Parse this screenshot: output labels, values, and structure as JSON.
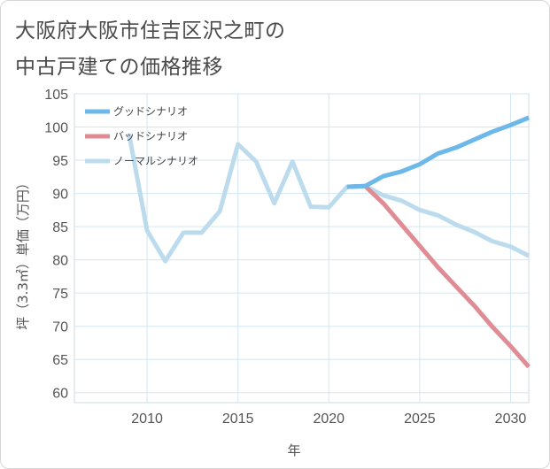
{
  "title_line1": "大阪府大阪市住吉区沢之町の",
  "title_line2": "中古戸建ての価格推移",
  "chart_data": {
    "type": "line",
    "xlabel": "年",
    "ylabel": "坪（3.3㎡）単価（万円）",
    "xlim": [
      2006,
      2031
    ],
    "ylim": [
      58.5,
      105
    ],
    "xticks": [
      2010,
      2015,
      2020,
      2025,
      2030
    ],
    "yticks": [
      60,
      65,
      70,
      75,
      80,
      85,
      90,
      95,
      100,
      105
    ],
    "grid": true,
    "legend_position": "top-left",
    "series": [
      {
        "name": "グッドシナリオ",
        "color": "#6cb8ea",
        "x": [
          2021,
          2022,
          2023,
          2024,
          2025,
          2026,
          2027,
          2028,
          2029,
          2030,
          2031
        ],
        "y": [
          91,
          91.1,
          92.6,
          93.3,
          94.4,
          96,
          96.9,
          98.1,
          99.3,
          100.3,
          101.4
        ]
      },
      {
        "name": "バッドシナリオ",
        "color": "#df8c94",
        "x": [
          2021,
          2022,
          2023,
          2024,
          2025,
          2026,
          2027,
          2028,
          2029,
          2030,
          2031
        ],
        "y": [
          91,
          91.1,
          88.5,
          85.3,
          82.1,
          78.9,
          76,
          73.1,
          69.9,
          67,
          63.9
        ]
      },
      {
        "name": "ノーマルシナリオ",
        "color": "#bcdced",
        "x": [
          2009,
          2010,
          2011,
          2012,
          2013,
          2014,
          2015,
          2016,
          2017,
          2018,
          2019,
          2020,
          2021,
          2022,
          2023,
          2024,
          2025,
          2026,
          2027,
          2028,
          2029,
          2030,
          2031
        ],
        "y": [
          99,
          84.4,
          79.8,
          84.1,
          84.1,
          87.3,
          97.4,
          94.8,
          88.5,
          94.8,
          88,
          87.9,
          91,
          91.1,
          89.7,
          88.9,
          87.5,
          86.7,
          85.3,
          84.2,
          82.8,
          82,
          80.6
        ]
      }
    ]
  }
}
